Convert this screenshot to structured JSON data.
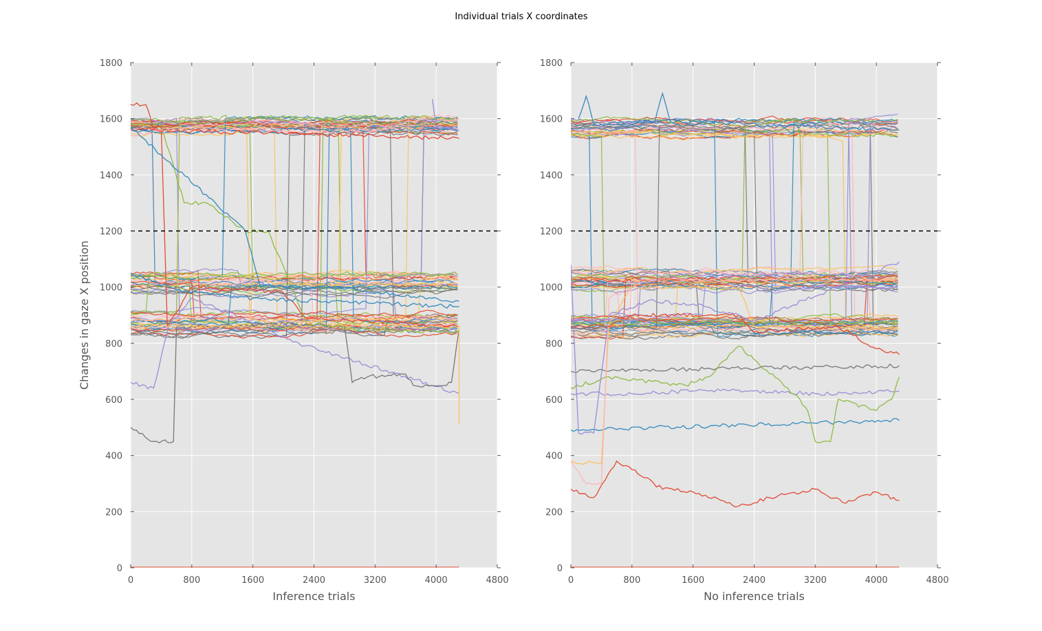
{
  "figure": {
    "title": "Individual trials X coordinates"
  },
  "chart_data": [
    {
      "type": "line",
      "title": "",
      "xlabel": "Inference trials",
      "ylabel": "Changes in gaze X position",
      "xlim": [
        0,
        4800
      ],
      "ylim": [
        0,
        1800
      ],
      "xticks": [
        0,
        800,
        1600,
        2400,
        3200,
        4000,
        4800
      ],
      "yticks": [
        0,
        200,
        400,
        600,
        800,
        1000,
        1200,
        1400,
        1600,
        1800
      ],
      "grid": true,
      "legend": "none",
      "reference_line": {
        "y": 1200,
        "style": "dashed",
        "color": "#000000"
      },
      "x_end": 4300,
      "series_colors": [
        "#E24A33",
        "#348ABD",
        "#988ED5",
        "#777777",
        "#FBC15E",
        "#8EBA42",
        "#FFB5B8"
      ],
      "clusters": [
        {
          "level": 1575,
          "count": 30,
          "spread": 25
        },
        {
          "level": 1020,
          "count": 26,
          "spread": 45
        },
        {
          "level": 870,
          "count": 28,
          "spread": 40
        }
      ],
      "series": [
        {
          "points": [
            [
              0,
              1560
            ],
            [
              400,
              1570
            ],
            [
              480,
              860
            ],
            [
              800,
              1000
            ],
            [
              1600,
              990
            ],
            [
              2000,
              980
            ],
            [
              2300,
              890
            ],
            [
              4300,
              860
            ]
          ]
        },
        {
          "points": [
            [
              0,
              1050
            ],
            [
              600,
              990
            ],
            [
              1600,
              960
            ],
            [
              4300,
              930
            ]
          ]
        },
        {
          "points": [
            [
              0,
              660
            ],
            [
              300,
              640
            ],
            [
              500,
              860
            ],
            [
              800,
              960
            ],
            [
              1700,
              860
            ],
            [
              2200,
              800
            ],
            [
              4300,
              620
            ]
          ]
        },
        {
          "points": [
            [
              0,
              500
            ],
            [
              300,
              450
            ],
            [
              560,
              450
            ],
            [
              600,
              860
            ],
            [
              800,
              860
            ],
            [
              1400,
              860
            ],
            [
              2100,
              870
            ],
            [
              2800,
              860
            ],
            [
              2900,
              660
            ],
            [
              3100,
              680
            ],
            [
              3600,
              690
            ],
            [
              3700,
              650
            ],
            [
              4100,
              650
            ],
            [
              4200,
              660
            ],
            [
              4300,
              850
            ]
          ]
        },
        {
          "points": [
            [
              0,
              860
            ],
            [
              500,
              860
            ],
            [
              4300,
              860
            ],
            [
              4300,
              510
            ]
          ]
        },
        {
          "points": [
            [
              0,
              1580
            ],
            [
              400,
              1580
            ],
            [
              700,
              1300
            ],
            [
              1000,
              1300
            ],
            [
              1500,
              1200
            ],
            [
              1800,
              1200
            ],
            [
              2300,
              870
            ],
            [
              3000,
              850
            ],
            [
              4300,
              840
            ]
          ]
        },
        {
          "points": [
            [
              0,
              1540
            ],
            [
              800,
              1570
            ],
            [
              1600,
              1560
            ],
            [
              2400,
              1555
            ],
            [
              3200,
              1560
            ],
            [
              4000,
              1610
            ],
            [
              4300,
              1600
            ]
          ]
        },
        {
          "points": [
            [
              0,
              1650
            ],
            [
              200,
              1650
            ],
            [
              300,
              1560
            ],
            [
              4300,
              1530
            ]
          ]
        },
        {
          "points": [
            [
              0,
              1570
            ],
            [
              1500,
              1200
            ],
            [
              1700,
              1000
            ],
            [
              2600,
              1000
            ],
            [
              4300,
              950
            ]
          ]
        },
        {
          "points": [
            [
              3950,
              1670
            ],
            [
              4000,
              1570
            ],
            [
              4300,
              1560
            ]
          ]
        }
      ]
    },
    {
      "type": "line",
      "title": "",
      "xlabel": "No inference trials",
      "ylabel": "",
      "xlim": [
        0,
        4800
      ],
      "ylim": [
        0,
        1800
      ],
      "xticks": [
        0,
        800,
        1600,
        2400,
        3200,
        4000,
        4800
      ],
      "yticks": [
        0,
        200,
        400,
        600,
        800,
        1000,
        1200,
        1400,
        1600,
        1800
      ],
      "grid": true,
      "legend": "none",
      "reference_line": {
        "y": 1200,
        "style": "dashed",
        "color": "#000000"
      },
      "x_end": 4300,
      "series_colors": [
        "#E24A33",
        "#348ABD",
        "#988ED5",
        "#777777",
        "#FBC15E",
        "#8EBA42",
        "#FFB5B8"
      ],
      "clusters": [
        {
          "level": 1570,
          "count": 28,
          "spread": 30
        },
        {
          "level": 1020,
          "count": 28,
          "spread": 45
        },
        {
          "level": 860,
          "count": 30,
          "spread": 35
        }
      ],
      "series": [
        {
          "points": [
            [
              0,
              280
            ],
            [
              300,
              250
            ],
            [
              600,
              380
            ],
            [
              800,
              350
            ],
            [
              1200,
              280
            ],
            [
              1600,
              270
            ],
            [
              2200,
              220
            ],
            [
              2600,
              250
            ],
            [
              3200,
              280
            ],
            [
              3600,
              230
            ],
            [
              4000,
              270
            ],
            [
              4300,
              240
            ]
          ]
        },
        {
          "points": [
            [
              0,
              490
            ],
            [
              4300,
              525
            ]
          ]
        },
        {
          "points": [
            [
              0,
              620
            ],
            [
              400,
              620
            ],
            [
              800,
              620
            ],
            [
              1600,
              630
            ],
            [
              2400,
              630
            ],
            [
              3200,
              620
            ],
            [
              4300,
              630
            ]
          ]
        },
        {
          "points": [
            [
              0,
              700
            ],
            [
              4300,
              720
            ]
          ]
        },
        {
          "points": [
            [
              0,
              380
            ],
            [
              400,
              370
            ],
            [
              500,
              870
            ],
            [
              800,
              1000
            ],
            [
              2200,
              1000
            ],
            [
              2400,
              860
            ],
            [
              4300,
              850
            ]
          ]
        },
        {
          "points": [
            [
              0,
              640
            ],
            [
              500,
              680
            ],
            [
              1500,
              650
            ],
            [
              1800,
              680
            ],
            [
              2200,
              790
            ],
            [
              3000,
              600
            ],
            [
              3100,
              560
            ],
            [
              3200,
              450
            ],
            [
              3400,
              450
            ],
            [
              3500,
              600
            ],
            [
              4000,
              560
            ],
            [
              4200,
              600
            ],
            [
              4300,
              680
            ]
          ]
        },
        {
          "points": [
            [
              0,
              380
            ],
            [
              200,
              300
            ],
            [
              400,
              300
            ],
            [
              500,
              960
            ],
            [
              800,
              1000
            ],
            [
              1200,
              1000
            ]
          ]
        },
        {
          "points": [
            [
              0,
              860
            ],
            [
              500,
              860
            ],
            [
              800,
              900
            ],
            [
              2200,
              900
            ],
            [
              2400,
              840
            ],
            [
              3500,
              860
            ],
            [
              4000,
              780
            ],
            [
              4300,
              760
            ]
          ]
        },
        {
          "points": [
            [
              100,
              1600
            ],
            [
              200,
              1680
            ],
            [
              300,
              1580
            ],
            [
              1100,
              1590
            ],
            [
              1200,
              1690
            ],
            [
              1300,
              1590
            ],
            [
              4300,
              1560
            ]
          ]
        },
        {
          "points": [
            [
              0,
              1080
            ],
            [
              100,
              480
            ],
            [
              300,
              480
            ],
            [
              500,
              900
            ],
            [
              1000,
              950
            ],
            [
              1600,
              940
            ],
            [
              2200,
              900
            ],
            [
              2400,
              880
            ],
            [
              4300,
              1090
            ]
          ]
        }
      ]
    }
  ]
}
